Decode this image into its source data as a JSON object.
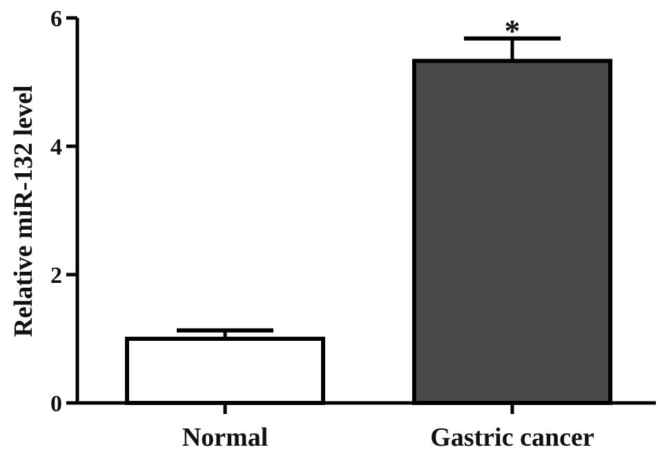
{
  "chart_data": {
    "type": "bar",
    "title": "",
    "xlabel": "",
    "ylabel": "Relative miR-132 level",
    "ylim": [
      0,
      6
    ],
    "yticks": [
      0,
      2,
      4,
      6
    ],
    "categories": [
      "Normal",
      "Gastric cancer"
    ],
    "values": [
      1.0,
      5.33
    ],
    "errors": [
      0.13,
      0.35
    ],
    "bar_colors": [
      "#ffffff",
      "#4a4a4a"
    ],
    "edge_color": "#000000",
    "annotations": [
      {
        "category": "Gastric cancer",
        "text": "*"
      }
    ],
    "grid": false,
    "legend": "none"
  }
}
